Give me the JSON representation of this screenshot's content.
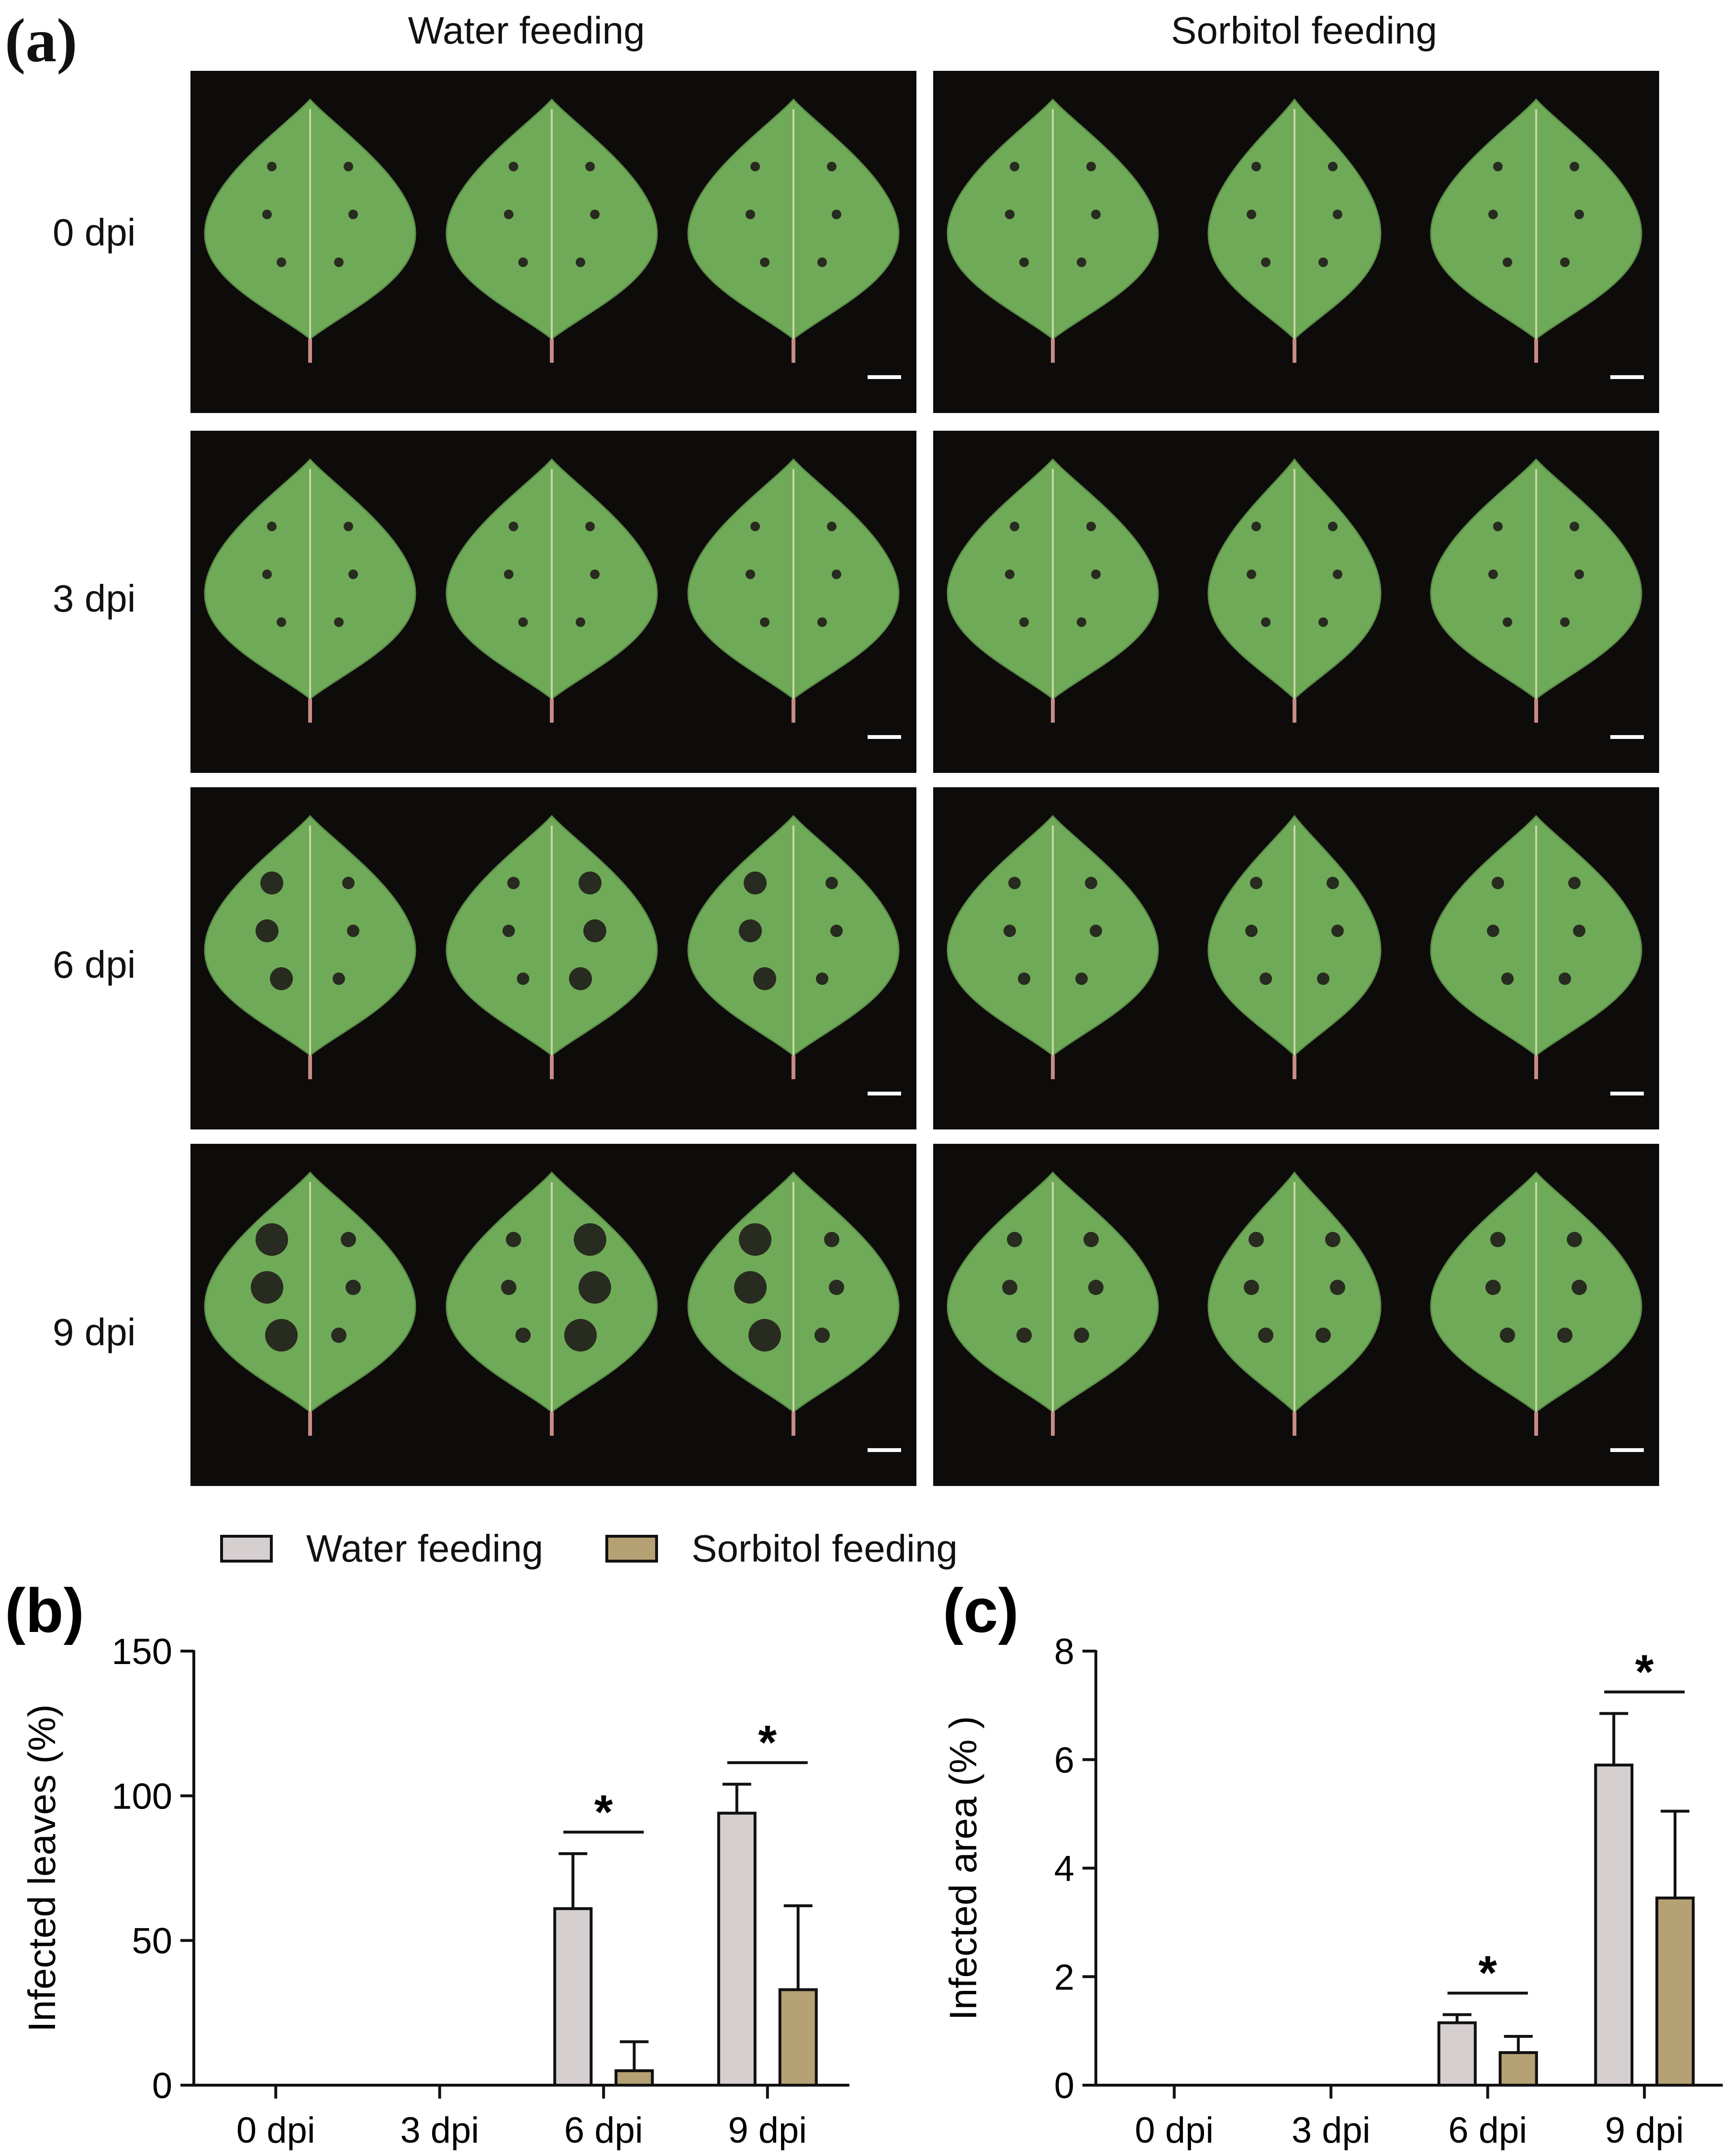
{
  "panel_a": {
    "label_open": "(",
    "letter": "a",
    "label_close": ")",
    "columns": [
      "Water feeding",
      "Sorbitol feeding"
    ],
    "rows": [
      "0 dpi",
      "3 dpi",
      "6 dpi",
      "9 dpi"
    ]
  },
  "colors": {
    "water": "#d6cfd0",
    "sorbitol": "#b6a174",
    "background": "#0e0b0b",
    "leaf": "#6faa58",
    "lesion": "#1c1515"
  },
  "legend": {
    "water": "Water feeding",
    "sorbitol": "Sorbitol feeding"
  },
  "chart_data": [
    {
      "type": "bar",
      "panel": "b",
      "categories": [
        "0 dpi",
        "3 dpi",
        "6 dpi",
        "9 dpi"
      ],
      "series": [
        {
          "name": "Water feeding",
          "values": [
            0,
            0,
            61,
            94
          ],
          "errors": [
            0,
            0,
            19,
            10
          ]
        },
        {
          "name": "Sorbitol feeding",
          "values": [
            0,
            0,
            5,
            33
          ],
          "errors": [
            0,
            0,
            10,
            29
          ]
        }
      ],
      "ylabel": "Infected leaves (%)",
      "xlabel": "",
      "ylim": [
        0,
        150
      ],
      "yticks": [
        0,
        50,
        100,
        150
      ],
      "significance": [
        {
          "category": "6 dpi",
          "label": "*"
        },
        {
          "category": "9 dpi",
          "label": "*"
        }
      ]
    },
    {
      "type": "bar",
      "panel": "c",
      "categories": [
        "0 dpi",
        "3 dpi",
        "6 dpi",
        "9 dpi"
      ],
      "series": [
        {
          "name": "Water feeding",
          "values": [
            0,
            0,
            1.15,
            5.9
          ],
          "errors": [
            0,
            0,
            0.15,
            0.95
          ]
        },
        {
          "name": "Sorbitol feeding",
          "values": [
            0,
            0,
            0.6,
            3.45
          ],
          "errors": [
            0,
            0,
            0.3,
            1.6
          ]
        }
      ],
      "ylabel": "Infected area (% )",
      "xlabel": "",
      "ylim": [
        0,
        8
      ],
      "yticks": [
        0,
        2,
        4,
        6,
        8
      ],
      "significance": [
        {
          "category": "6 dpi",
          "label": "*"
        },
        {
          "category": "9 dpi",
          "label": "*"
        }
      ]
    }
  ]
}
